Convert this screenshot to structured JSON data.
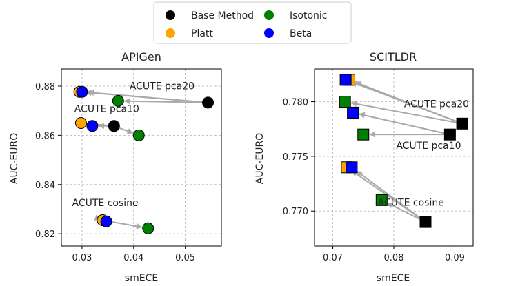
{
  "legend": {
    "items": [
      {
        "label": "Base Method",
        "color": "#000000"
      },
      {
        "label": "Platt",
        "color": "#FFA500"
      },
      {
        "label": "Isotonic",
        "color": "#008000"
      },
      {
        "label": "Beta",
        "color": "#0000FF"
      }
    ]
  },
  "chart_data": [
    {
      "type": "scatter",
      "title": "APIGen",
      "xlabel": "smECE",
      "ylabel": "AUC-EURO",
      "xlim": [
        0.026,
        0.057
      ],
      "ylim": [
        0.815,
        0.887
      ],
      "xticks": [
        0.03,
        0.04,
        0.05
      ],
      "xtick_labels": [
        "0.03",
        "0.04",
        "0.05"
      ],
      "yticks": [
        0.82,
        0.84,
        0.86,
        0.88
      ],
      "ytick_labels": [
        "0.82",
        "0.84",
        "0.86",
        "0.88"
      ],
      "grid": true,
      "marker": "circle",
      "groups": [
        {
          "label": "ACUTE pca20",
          "label_pos": [
            0.0455,
            0.8787
          ],
          "points": {
            "base": [
              0.0544,
              0.8733
            ],
            "platt": [
              0.0295,
              0.8777
            ],
            "isotonic": [
              0.037,
              0.874
            ],
            "beta": [
              0.03,
              0.8777
            ]
          }
        },
        {
          "label": "ACUTE pca10",
          "label_pos": [
            0.0348,
            0.8695
          ],
          "points": {
            "base": [
              0.0362,
              0.8638
            ],
            "platt": [
              0.0298,
              0.865
            ],
            "isotonic": [
              0.041,
              0.86
            ],
            "beta": [
              0.032,
              0.8638
            ]
          }
        },
        {
          "label": "ACUTE cosine",
          "label_pos": [
            0.0345,
            0.8312
          ],
          "points": {
            "base": [
              0.034,
              0.8255
            ],
            "platt": [
              0.034,
              0.8255
            ],
            "isotonic": [
              0.0428,
              0.8222
            ],
            "beta": [
              0.0347,
              0.825
            ]
          }
        }
      ]
    },
    {
      "type": "scatter",
      "title": "SCITLDR",
      "xlabel": "smECE",
      "ylabel": "AUC-EURO",
      "xlim": [
        0.067,
        0.093
      ],
      "ylim": [
        0.7668,
        0.783
      ],
      "xticks": [
        0.07,
        0.08,
        0.09
      ],
      "xtick_labels": [
        "0.07",
        "0.08",
        "0.09"
      ],
      "yticks": [
        0.77,
        0.775,
        0.78
      ],
      "ytick_labels": [
        "0.770",
        "0.775",
        "0.780"
      ],
      "grid": true,
      "marker": "square",
      "groups": [
        {
          "label": "ACUTE pca20",
          "label_pos": [
            0.087,
            0.7795
          ],
          "points": {
            "base": [
              0.0912,
              0.778
            ],
            "platt": [
              0.0727,
              0.782
            ],
            "isotonic": [
              0.072,
              0.78
            ],
            "beta": [
              0.0721,
              0.782
            ]
          }
        },
        {
          "label": "ACUTE pca10",
          "label_pos": [
            0.0857,
            0.7757
          ],
          "points": {
            "base": [
              0.0892,
              0.777
            ],
            "platt": [
              0.0733,
              0.779
            ],
            "isotonic": [
              0.075,
              0.777
            ],
            "beta": [
              0.0733,
              0.779
            ]
          }
        },
        {
          "label": "ACUTE cosine",
          "label_pos": [
            0.0828,
            0.7705
          ],
          "points": {
            "base": [
              0.0852,
              0.769
            ],
            "platt": [
              0.0723,
              0.774
            ],
            "isotonic": [
              0.078,
              0.771
            ],
            "beta": [
              0.0731,
              0.774
            ]
          }
        }
      ]
    }
  ]
}
